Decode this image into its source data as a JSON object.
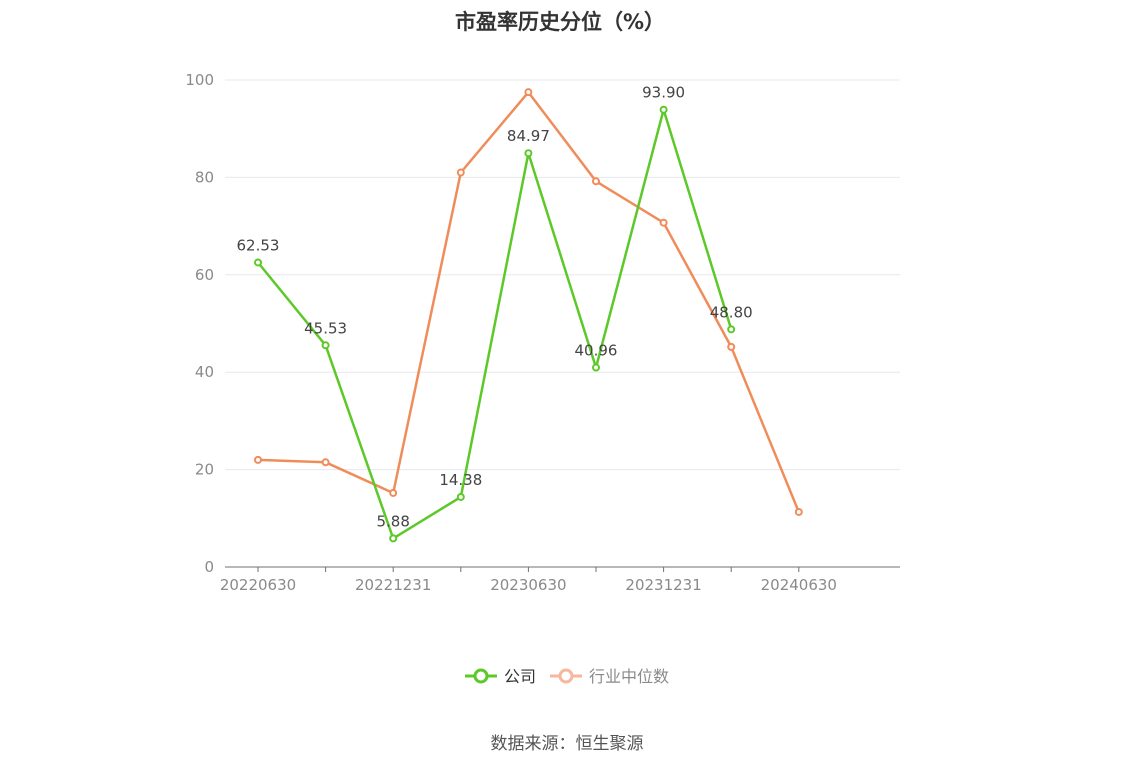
{
  "chart_data": {
    "type": "line",
    "title": "市盈率历史分位（%）",
    "xlabel": "",
    "ylabel": "",
    "x": [
      "20220630",
      "20220930",
      "20221231",
      "20230331",
      "20230630",
      "20230930",
      "20231231",
      "20240331",
      "20240630"
    ],
    "x_tick_labels": [
      "20220630",
      "20221231",
      "20230630",
      "20231231",
      "20240630"
    ],
    "ylim": [
      0,
      100
    ],
    "y_ticks": [
      0,
      20,
      40,
      60,
      80,
      100
    ],
    "grid": true,
    "legend_position": "bottom-center",
    "series": [
      {
        "name": "公司",
        "color": "#5cc929",
        "values": [
          62.53,
          45.53,
          5.88,
          14.38,
          84.97,
          40.96,
          93.9,
          48.8,
          null
        ],
        "labels": [
          "62.53",
          "45.53",
          "5.88",
          "14.38",
          "84.97",
          "40.96",
          "93.90",
          "48.80",
          null
        ]
      },
      {
        "name": "行业中位数",
        "color": "#f08c5a",
        "legend_color": "#f7b79c",
        "values": [
          22.0,
          21.5,
          15.2,
          81.0,
          97.5,
          79.2,
          70.7,
          45.2,
          11.3
        ]
      }
    ]
  },
  "footer": {
    "source": "数据来源：恒生聚源"
  }
}
